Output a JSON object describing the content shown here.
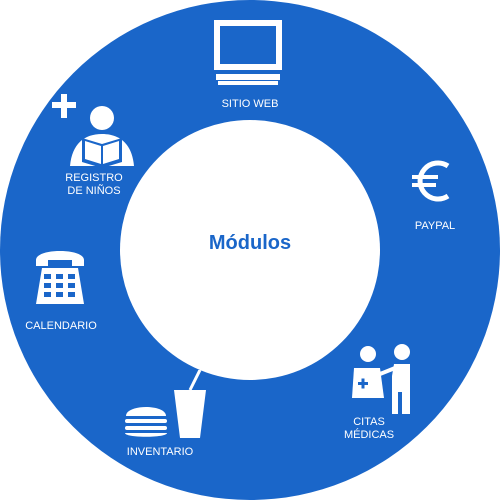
{
  "center": {
    "title": "Módulos"
  },
  "colors": {
    "ring": "#1a66c9",
    "center": "#ffffff",
    "icon": "#ffffff"
  },
  "modules": [
    {
      "id": "sitio-web",
      "label": "SITIO WEB",
      "icon": "computer-monitor-icon"
    },
    {
      "id": "paypal",
      "label": "PAYPAL",
      "icon": "euro-icon"
    },
    {
      "id": "citas-medicas",
      "label_line1": "CITAS",
      "label_line2": "MÉDICAS",
      "icon": "doctor-patient-icon"
    },
    {
      "id": "inventario",
      "label": "INVENTARIO",
      "icon": "burger-drink-icon"
    },
    {
      "id": "calendario",
      "label": "CALENDARIO",
      "icon": "telephone-icon"
    },
    {
      "id": "registro-de-ninos",
      "label_line1": "REGISTRO",
      "label_line2": "DE NIÑOS",
      "icon": "child-reading-icon"
    }
  ]
}
